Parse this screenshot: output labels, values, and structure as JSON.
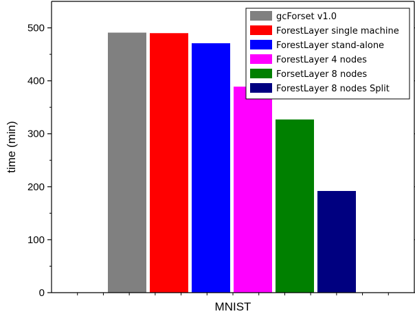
{
  "chart_data": {
    "type": "bar",
    "categories": [
      "MNIST"
    ],
    "xlabel": "MNIST",
    "ylabel": "time (min)",
    "ylim": [
      0,
      550
    ],
    "yticks": [
      0,
      100,
      200,
      300,
      400,
      500
    ],
    "grid": false,
    "legend_position": "top-right",
    "series": [
      {
        "name": "gcForset v1.0",
        "values": [
          491
        ],
        "color": "#808080"
      },
      {
        "name": "ForestLayer single machine",
        "values": [
          490
        ],
        "color": "#ff0000"
      },
      {
        "name": "ForestLayer stand-alone",
        "values": [
          471
        ],
        "color": "#0000ff"
      },
      {
        "name": "ForestLayer 4 nodes",
        "values": [
          389
        ],
        "color": "#ff00ff"
      },
      {
        "name": "ForsetLayer 8 nodes",
        "values": [
          327
        ],
        "color": "#008000"
      },
      {
        "name": "ForestLayer 8 nodes Split",
        "values": [
          192
        ],
        "color": "#000080"
      }
    ]
  }
}
